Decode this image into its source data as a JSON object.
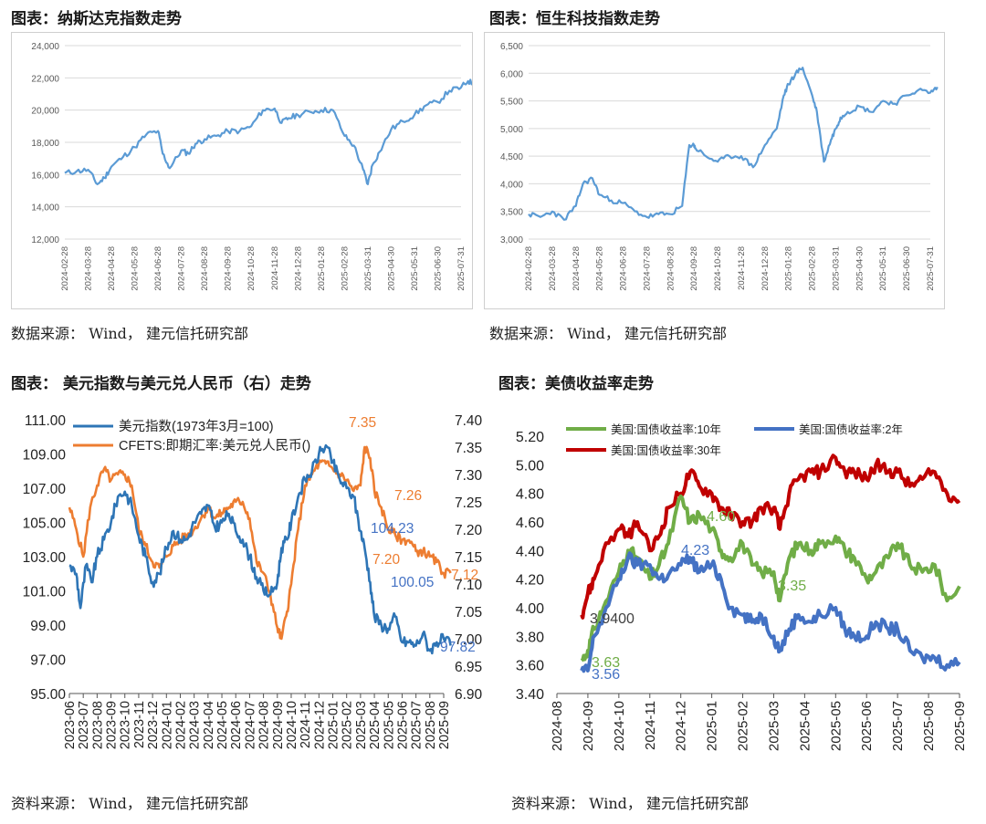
{
  "chart_data": [
    {
      "id": "nasdaq",
      "type": "line",
      "title": "图表：纳斯达克指数走势",
      "source": "数据来源： Wind， 建元信托研究部",
      "ylim": [
        12000,
        24000
      ],
      "yticks": [
        "12,000",
        "14,000",
        "16,000",
        "18,000",
        "20,000",
        "22,000",
        "24,000"
      ],
      "ytick_values": [
        12000,
        14000,
        16000,
        18000,
        20000,
        22000,
        24000
      ],
      "xticks": [
        "2024-02-28",
        "2024-03-28",
        "2024-04-28",
        "2024-05-28",
        "2024-06-28",
        "2024-07-28",
        "2024-08-28",
        "2024-09-28",
        "2024-10-28",
        "2024-11-28",
        "2024-12-28",
        "2025-01-28",
        "2025-02-28",
        "2025-03-31",
        "2025-04-30",
        "2025-05-31",
        "2025-06-30",
        "2025-07-31"
      ],
      "series": [
        {
          "name": "纳斯达克指数",
          "color": "#5b9bd5",
          "x": [
            0,
            0.5,
            1,
            1.4,
            1.7,
            2,
            2.5,
            3,
            3.5,
            4,
            4.2,
            4.5,
            5,
            5.3,
            5.6,
            6,
            6.5,
            7,
            7.5,
            8,
            8.5,
            9,
            9.3,
            9.6,
            10,
            10.5,
            11,
            11.5,
            12,
            12.4,
            12.8,
            13,
            13.2,
            13.5,
            14,
            14.5,
            15,
            15.5,
            16,
            16.5,
            17,
            17.3,
            17.6
          ],
          "y": [
            16100,
            16200,
            16300,
            15400,
            15800,
            16500,
            17100,
            17700,
            18500,
            18700,
            17300,
            16400,
            17500,
            17300,
            17900,
            18200,
            18400,
            18700,
            18700,
            19000,
            20000,
            20100,
            19200,
            19500,
            19700,
            19900,
            20000,
            20000,
            18400,
            17800,
            16300,
            15400,
            16600,
            17400,
            18800,
            19300,
            19700,
            20300,
            20500,
            21200,
            21400,
            21800,
            21600
          ]
        }
      ]
    },
    {
      "id": "hstech",
      "type": "line",
      "title": "图表：恒生科技指数走势",
      "source": "数据来源： Wind， 建元信托研究部",
      "ylim": [
        3000,
        6500
      ],
      "yticks": [
        "3,000",
        "3,500",
        "4,000",
        "4,500",
        "5,000",
        "5,500",
        "6,000",
        "6,500"
      ],
      "ytick_values": [
        3000,
        3500,
        4000,
        4500,
        5000,
        5500,
        6000,
        6500
      ],
      "xticks": [
        "2024-02-28",
        "2024-03-28",
        "2024-04-28",
        "2024-05-28",
        "2024-06-28",
        "2024-07-28",
        "2024-08-28",
        "2024-09-28",
        "2024-10-28",
        "2024-11-28",
        "2024-12-28",
        "2025-01-28",
        "2025-02-28",
        "2025-03-31",
        "2025-04-30",
        "2025-05-31",
        "2025-06-30",
        "2025-07-31"
      ],
      "series": [
        {
          "name": "恒生科技指数",
          "color": "#5b9bd5",
          "x": [
            0,
            0.5,
            1,
            1.5,
            2,
            2.3,
            2.7,
            3,
            3.5,
            4,
            4.5,
            5,
            5.5,
            6,
            6.5,
            6.8,
            7,
            7.05,
            7.5,
            8,
            8.5,
            9,
            9.5,
            10,
            10.5,
            10.8,
            11,
            11.3,
            11.6,
            12,
            12.2,
            12.5,
            12.8,
            13,
            13.2,
            13.5,
            14,
            14.5,
            15,
            15.5,
            16,
            16.5,
            17,
            17.3
          ],
          "y": [
            3450,
            3400,
            3500,
            3350,
            3600,
            4000,
            4100,
            3800,
            3700,
            3650,
            3500,
            3400,
            3450,
            3450,
            3600,
            4700,
            4700,
            4650,
            4500,
            4400,
            4500,
            4500,
            4300,
            4700,
            5000,
            5600,
            5800,
            6000,
            6100,
            5600,
            5300,
            4400,
            4800,
            5000,
            5200,
            5300,
            5400,
            5300,
            5500,
            5450,
            5600,
            5700,
            5650,
            5750
          ]
        }
      ]
    },
    {
      "id": "usd-cny",
      "type": "line",
      "title": "图表： 美元指数与美元兑人民币（右）走势",
      "source": "资料来源： Wind， 建元信托研究部",
      "ylim": [
        95.0,
        111.0
      ],
      "yticks": [
        "95.00",
        "97.00",
        "99.00",
        "101.00",
        "103.00",
        "105.00",
        "107.00",
        "109.00",
        "111.00"
      ],
      "ytick_values": [
        95,
        97,
        99,
        101,
        103,
        105,
        107,
        109,
        111
      ],
      "ylim_right": [
        6.9,
        7.4
      ],
      "yticks_right": [
        "6.90",
        "6.95",
        "7.00",
        "7.05",
        "7.10",
        "7.15",
        "7.20",
        "7.25",
        "7.30",
        "7.35",
        "7.40"
      ],
      "ytick_values_right": [
        6.9,
        6.95,
        7.0,
        7.05,
        7.1,
        7.15,
        7.2,
        7.25,
        7.3,
        7.35,
        7.4
      ],
      "xticks": [
        "2023-06",
        "2023-07",
        "2023-08",
        "2023-09",
        "2023-10",
        "2023-11",
        "2023-12",
        "2024-01",
        "2024-02",
        "2024-03",
        "2024-04",
        "2024-05",
        "2024-06",
        "2024-07",
        "2024-08",
        "2024-09",
        "2024-10",
        "2024-11",
        "2024-12",
        "2025-01",
        "2025-02",
        "2025-03",
        "2025-04",
        "2025-05",
        "2025-06",
        "2025-07",
        "2025-08",
        "2025-09"
      ],
      "series": [
        {
          "name": "美元指数(1973年3月=100)",
          "color": "#2e75b6",
          "axis": "left",
          "x": [
            0,
            0.5,
            0.8,
            1.2,
            1.6,
            2,
            2.5,
            3,
            3.5,
            4,
            4.5,
            5,
            5.5,
            6,
            6.5,
            7,
            7.5,
            8,
            8.5,
            9,
            9.5,
            10,
            10.5,
            11,
            11.5,
            12,
            12.5,
            13,
            13.5,
            14,
            14.5,
            15,
            15.3,
            15.7,
            16,
            16.5,
            17,
            17.5,
            18,
            18.5,
            19,
            19.5,
            20,
            20.5,
            21,
            21.3,
            21.7,
            22,
            22.5,
            23,
            23.5,
            24,
            24.5,
            25,
            25.5,
            26,
            26.5,
            27,
            27.5
          ],
          "y": [
            102.5,
            102.0,
            100.0,
            102.5,
            101.5,
            103.0,
            104.0,
            105.0,
            106.5,
            106.8,
            106.0,
            104.2,
            103.0,
            101.5,
            102.0,
            103.5,
            104.5,
            104.0,
            104.0,
            105.0,
            105.5,
            106.0,
            104.7,
            105.0,
            105.5,
            104.5,
            104.0,
            103.0,
            101.8,
            101.0,
            100.8,
            101.5,
            103.5,
            104.0,
            105.0,
            106.5,
            107.5,
            108.0,
            109.0,
            109.5,
            108.5,
            107.5,
            107.0,
            106.5,
            104.5,
            103.5,
            101.5,
            99.5,
            99.0,
            98.8,
            99.5,
            98.0,
            98.0,
            97.8,
            98.5,
            97.5,
            98.0,
            98.2,
            97.8
          ]
        },
        {
          "name": "CFETS:即期汇率:美元兑人民币()",
          "color": "#ed7d31",
          "axis": "right",
          "x": [
            0,
            0.5,
            1,
            1.5,
            2,
            2.5,
            3,
            3.5,
            4,
            4.5,
            5,
            5.5,
            6,
            6.5,
            7,
            7.5,
            8,
            8.5,
            9,
            9.5,
            10,
            10.5,
            11,
            11.5,
            12,
            12.5,
            13,
            13.5,
            14,
            14.5,
            15,
            15.3,
            15.7,
            16,
            16.5,
            17,
            17.5,
            18,
            18.5,
            19,
            19.5,
            20,
            20.5,
            21,
            21.3,
            21.7,
            22,
            22.5,
            23,
            23.5,
            24,
            24.5,
            25,
            25.5,
            26,
            26.5,
            27,
            27.5
          ],
          "y": [
            7.24,
            7.2,
            7.15,
            7.24,
            7.28,
            7.31,
            7.29,
            7.3,
            7.3,
            7.28,
            7.2,
            7.17,
            7.14,
            7.13,
            7.15,
            7.17,
            7.18,
            7.19,
            7.2,
            7.22,
            7.24,
            7.22,
            7.23,
            7.24,
            7.25,
            7.25,
            7.22,
            7.14,
            7.12,
            7.08,
            7.02,
            7.0,
            7.05,
            7.1,
            7.2,
            7.28,
            7.3,
            7.32,
            7.32,
            7.31,
            7.3,
            7.29,
            7.27,
            7.28,
            7.35,
            7.33,
            7.27,
            7.24,
            7.2,
            7.19,
            7.18,
            7.18,
            7.16,
            7.16,
            7.15,
            7.14,
            7.12,
            7.12
          ]
        }
      ],
      "annotations": [
        "7.35",
        "7.26",
        "7.20",
        "7.12",
        "104.23",
        "100.05",
        "97.82"
      ]
    },
    {
      "id": "ust",
      "type": "line",
      "title": "图表：美债收益率走势",
      "source": "资料来源： Wind， 建元信托研究部",
      "ylim": [
        3.4,
        5.2
      ],
      "yticks": [
        "3.40",
        "3.60",
        "3.80",
        "4.00",
        "4.20",
        "4.40",
        "4.60",
        "4.80",
        "5.00",
        "5.20"
      ],
      "ytick_values": [
        3.4,
        3.6,
        3.8,
        4.0,
        4.2,
        4.4,
        4.6,
        4.8,
        5.0,
        5.2
      ],
      "xticks": [
        "2024-08",
        "2024-09",
        "2024-10",
        "2024-11",
        "2024-12",
        "2025-01",
        "2025-02",
        "2025-03",
        "2025-04",
        "2025-05",
        "2025-06",
        "2025-07",
        "2025-08",
        "2025-09"
      ],
      "series": [
        {
          "name": "美国:国债收益率:10年",
          "color": "#70ad47",
          "x": [
            0.8,
            1.0,
            1.2,
            1.5,
            2.0,
            2.3,
            2.6,
            3.0,
            3.3,
            3.6,
            4.0,
            4.3,
            4.6,
            5.0,
            5.3,
            5.6,
            6.0,
            6.3,
            6.6,
            7.0,
            7.2,
            7.5,
            7.8,
            8.2,
            8.5,
            9.0,
            9.3,
            9.6,
            10.0,
            10.3,
            10.7,
            11.0,
            11.4,
            11.8,
            12.2,
            12.6,
            13.0
          ],
          "y": [
            3.63,
            3.7,
            3.85,
            4.0,
            4.25,
            4.4,
            4.35,
            4.2,
            4.3,
            4.45,
            4.78,
            4.6,
            4.65,
            4.55,
            4.4,
            4.35,
            4.45,
            4.3,
            4.25,
            4.25,
            4.05,
            4.35,
            4.45,
            4.4,
            4.45,
            4.5,
            4.4,
            4.35,
            4.2,
            4.25,
            4.35,
            4.45,
            4.3,
            4.25,
            4.3,
            4.05,
            4.15
          ]
        },
        {
          "name": "美国:国债收益率:2年",
          "color": "#4472c4",
          "x": [
            0.8,
            1.0,
            1.2,
            1.5,
            2.0,
            2.3,
            2.6,
            3.0,
            3.3,
            3.6,
            4.0,
            4.3,
            4.6,
            5.0,
            5.3,
            5.6,
            6.0,
            6.3,
            6.6,
            7.0,
            7.2,
            7.5,
            7.8,
            8.2,
            8.5,
            9.0,
            9.3,
            9.6,
            10.0,
            10.3,
            10.7,
            11.0,
            11.4,
            11.8,
            12.2,
            12.6,
            13.0
          ],
          "y": [
            3.56,
            3.56,
            3.8,
            3.94,
            4.2,
            4.35,
            4.3,
            4.3,
            4.2,
            4.23,
            4.3,
            4.35,
            4.25,
            4.3,
            4.2,
            4.0,
            3.95,
            3.9,
            3.95,
            3.8,
            3.7,
            3.85,
            3.95,
            3.9,
            3.95,
            4.0,
            3.85,
            3.8,
            3.8,
            3.9,
            3.85,
            3.85,
            3.7,
            3.65,
            3.65,
            3.6,
            3.62
          ]
        },
        {
          "name": "美国:国债收益率:30年",
          "color": "#c00000",
          "x": [
            0.8,
            1.0,
            1.2,
            1.5,
            2.0,
            2.3,
            2.6,
            3.0,
            3.3,
            3.6,
            4.0,
            4.3,
            4.6,
            5.0,
            5.3,
            5.6,
            6.0,
            6.3,
            6.6,
            7.0,
            7.2,
            7.5,
            7.8,
            8.2,
            8.5,
            9.0,
            9.3,
            9.6,
            10.0,
            10.3,
            10.7,
            11.0,
            11.4,
            11.8,
            12.2,
            12.6,
            13.0
          ],
          "y": [
            3.95,
            4.1,
            4.2,
            4.4,
            4.55,
            4.5,
            4.6,
            4.4,
            4.5,
            4.7,
            4.8,
            4.95,
            4.85,
            4.8,
            4.7,
            4.65,
            4.6,
            4.6,
            4.7,
            4.7,
            4.55,
            4.8,
            4.9,
            4.95,
            4.95,
            5.05,
            4.95,
            4.95,
            4.9,
            5.0,
            4.95,
            4.95,
            4.85,
            4.9,
            4.95,
            4.8,
            4.75
          ]
        }
      ],
      "annotations": [
        "4.60",
        "4.23",
        "3.9400",
        "3.63",
        "3.56",
        "3.35"
      ]
    }
  ]
}
